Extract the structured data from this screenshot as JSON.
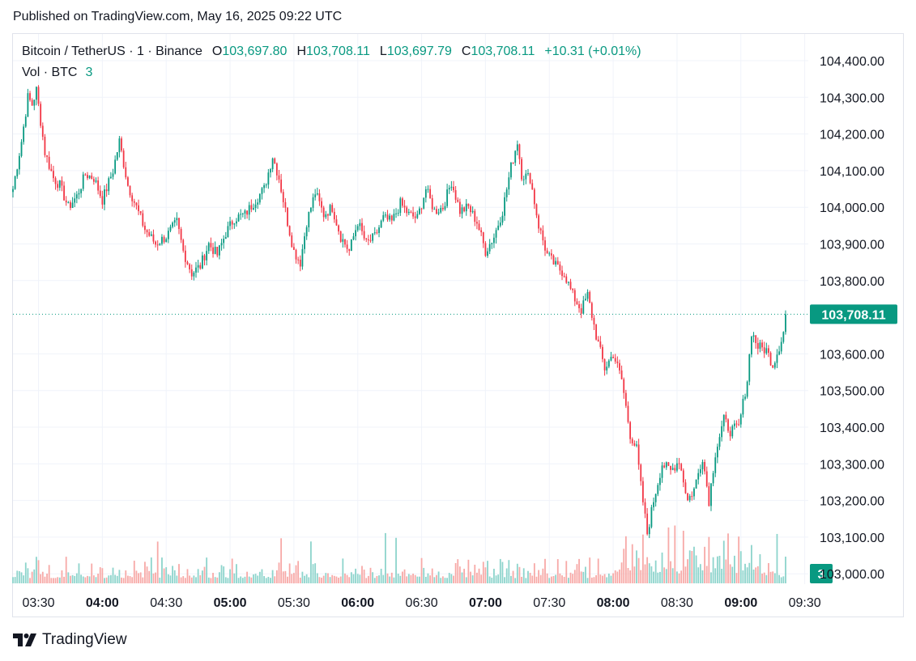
{
  "published": "Published on TradingView.com, May 16, 2025 09:22 UTC",
  "legend": {
    "symbol": "Bitcoin / TetherUS · 1 · Binance",
    "open_key": "O",
    "open": "103,697.80",
    "high_key": "H",
    "high": "103,708.11",
    "low_key": "L",
    "low": "103,697.79",
    "close_key": "C",
    "close": "103,708.11",
    "change": "+10.31 (+0.01%)",
    "volume_label": "Vol · BTC",
    "volume_value": "3"
  },
  "footer": {
    "brand": "TradingView"
  },
  "colors": {
    "up": "#089981",
    "down": "#f23645",
    "up_vol": "#8dd4cc",
    "down_vol": "#f7a9a7",
    "grid": "#f0f3fa",
    "text": "#131722"
  },
  "chart_data": {
    "type": "candlestick",
    "interval": "1 minute",
    "x_ticks": [
      "03:30",
      "04:00",
      "04:30",
      "05:00",
      "05:30",
      "06:00",
      "06:30",
      "07:00",
      "07:30",
      "08:00",
      "08:30",
      "09:00",
      "09:30"
    ],
    "bold_x_ticks": [
      "04:00",
      "05:00",
      "06:00",
      "07:00",
      "08:00",
      "09:00"
    ],
    "y_ticks": [
      "104,400.00",
      "104,300.00",
      "104,200.00",
      "104,100.00",
      "104,000.00",
      "103,900.00",
      "103,800.00",
      "103,600.00",
      "103,500.00",
      "103,400.00",
      "103,300.00",
      "103,200.00",
      "103,100.00",
      "103,000.00"
    ],
    "ylim": [
      102990,
      104440
    ],
    "last_price": 103708.11,
    "last_price_label": "103,708.11",
    "last_volume": 3,
    "last_volume_label": "3",
    "start_time": "03:18",
    "price_path": [
      [
        "03:18",
        104050
      ],
      [
        "03:22",
        104180
      ],
      [
        "03:25",
        104300
      ],
      [
        "03:27",
        104280
      ],
      [
        "03:29",
        104320
      ],
      [
        "03:33",
        104150
      ],
      [
        "03:37",
        104080
      ],
      [
        "03:40",
        104060
      ],
      [
        "03:44",
        104000
      ],
      [
        "03:48",
        104030
      ],
      [
        "03:52",
        104090
      ],
      [
        "03:56",
        104080
      ],
      [
        "04:00",
        104020
      ],
      [
        "04:05",
        104100
      ],
      [
        "04:08",
        104180
      ],
      [
        "04:12",
        104060
      ],
      [
        "04:16",
        104000
      ],
      [
        "04:20",
        103940
      ],
      [
        "04:25",
        103900
      ],
      [
        "04:30",
        103920
      ],
      [
        "04:35",
        103960
      ],
      [
        "04:38",
        103880
      ],
      [
        "04:42",
        103820
      ],
      [
        "04:46",
        103840
      ],
      [
        "04:50",
        103900
      ],
      [
        "04:54",
        103870
      ],
      [
        "04:58",
        103930
      ],
      [
        "05:02",
        103970
      ],
      [
        "05:07",
        103980
      ],
      [
        "05:12",
        104020
      ],
      [
        "05:16",
        104050
      ],
      [
        "05:20",
        104140
      ],
      [
        "05:23",
        104080
      ],
      [
        "05:27",
        103960
      ],
      [
        "05:30",
        103880
      ],
      [
        "05:33",
        103850
      ],
      [
        "05:36",
        103960
      ],
      [
        "05:40",
        104040
      ],
      [
        "05:44",
        103980
      ],
      [
        "05:48",
        104000
      ],
      [
        "05:52",
        103920
      ],
      [
        "05:56",
        103880
      ],
      [
        "06:00",
        103960
      ],
      [
        "06:04",
        103900
      ],
      [
        "06:08",
        103920
      ],
      [
        "06:12",
        103970
      ],
      [
        "06:16",
        103960
      ],
      [
        "06:20",
        104010
      ],
      [
        "06:24",
        103980
      ],
      [
        "06:28",
        103970
      ],
      [
        "06:32",
        104050
      ],
      [
        "06:36",
        103990
      ],
      [
        "06:40",
        104000
      ],
      [
        "06:44",
        104070
      ],
      [
        "06:48",
        103990
      ],
      [
        "06:52",
        104000
      ],
      [
        "06:56",
        103960
      ],
      [
        "07:00",
        103880
      ],
      [
        "07:04",
        103920
      ],
      [
        "07:08",
        103990
      ],
      [
        "07:12",
        104110
      ],
      [
        "07:15",
        104180
      ],
      [
        "07:17",
        104090
      ],
      [
        "07:21",
        104080
      ],
      [
        "07:25",
        103950
      ],
      [
        "07:29",
        103870
      ],
      [
        "07:33",
        103840
      ],
      [
        "07:37",
        103820
      ],
      [
        "07:41",
        103760
      ],
      [
        "07:45",
        103720
      ],
      [
        "07:48",
        103760
      ],
      [
        "07:52",
        103650
      ],
      [
        "07:56",
        103560
      ],
      [
        "08:00",
        103600
      ],
      [
        "08:04",
        103530
      ],
      [
        "08:08",
        103380
      ],
      [
        "08:11",
        103340
      ],
      [
        "08:13",
        103240
      ],
      [
        "08:16",
        103110
      ],
      [
        "08:19",
        103200
      ],
      [
        "08:23",
        103300
      ],
      [
        "08:27",
        103280
      ],
      [
        "08:31",
        103310
      ],
      [
        "08:35",
        103200
      ],
      [
        "08:38",
        103230
      ],
      [
        "08:42",
        103320
      ],
      [
        "08:45",
        103200
      ],
      [
        "08:48",
        103330
      ],
      [
        "08:52",
        103420
      ],
      [
        "08:55",
        103390
      ],
      [
        "08:59",
        103400
      ],
      [
        "09:03",
        103530
      ],
      [
        "09:05",
        103660
      ],
      [
        "09:08",
        103620
      ],
      [
        "09:12",
        103610
      ],
      [
        "09:15",
        103570
      ],
      [
        "09:18",
        103620
      ],
      [
        "09:20",
        103660
      ],
      [
        "09:21",
        103708
      ]
    ]
  }
}
